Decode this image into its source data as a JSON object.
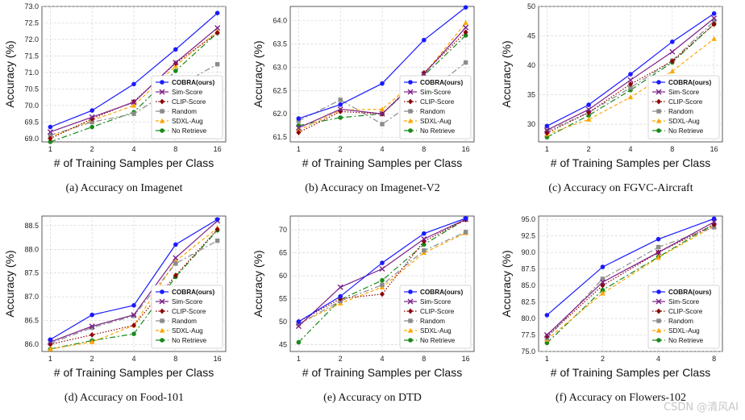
{
  "watermark": "CSDN @清风AI",
  "legend_labels": [
    "COBRA(ours)",
    "Sim-Score",
    "CLIP-Score",
    "Random",
    "SDXL-Aug",
    "No Retrieve"
  ],
  "series_colors": {
    "COBRA(ours)": "#1a1aff",
    "Sim-Score": "#7b1f87",
    "CLIP-Score": "#8b0000",
    "Random": "#8c8c8c",
    "SDXL-Aug": "#ffa500",
    "No Retrieve": "#1a8a1a"
  },
  "series_markers": {
    "COBRA(ours)": "circle",
    "Sim-Score": "x",
    "CLIP-Score": "diamond",
    "Random": "square",
    "SDXL-Aug": "triangle",
    "No Retrieve": "circle"
  },
  "grid": true,
  "legend_placement": "lower-right",
  "chart_data": [
    {
      "type": "line",
      "caption": "(a) Accuracy on Imagenet",
      "xlabel": "# of Training Samples per Class",
      "ylabel": "Accuracy (%)",
      "x": [
        1,
        2,
        4,
        8,
        16
      ],
      "xticks": [
        "1",
        "2",
        "4",
        "8",
        "16"
      ],
      "yticks": [
        "69.0",
        "69.5",
        "70.0",
        "70.5",
        "71.0",
        "71.5",
        "72.0",
        "72.5",
        "73.0"
      ],
      "ylim": [
        68.9,
        73.0
      ],
      "series": [
        {
          "name": "COBRA(ours)",
          "values": [
            69.35,
            69.85,
            70.65,
            71.7,
            72.8
          ]
        },
        {
          "name": "Sim-Score",
          "values": [
            69.2,
            69.65,
            70.1,
            71.3,
            72.35
          ]
        },
        {
          "name": "CLIP-Score",
          "values": [
            69.0,
            69.6,
            70.12,
            71.28,
            72.2
          ]
        },
        {
          "name": "Random",
          "values": [
            69.1,
            69.5,
            69.75,
            70.55,
            71.25
          ]
        },
        {
          "name": "SDXL-Aug",
          "values": [
            69.05,
            69.55,
            70.0,
            71.2,
            72.25
          ]
        },
        {
          "name": "No Retrieve",
          "values": [
            68.9,
            69.35,
            69.8,
            71.05,
            72.2
          ]
        }
      ]
    },
    {
      "type": "line",
      "caption": "(b) Accuracy on Imagenet-V2",
      "xlabel": "# of Training Samples per Class",
      "ylabel": "Accuracy (%)",
      "x": [
        1,
        2,
        4,
        8,
        16
      ],
      "xticks": [
        "1",
        "2",
        "4",
        "8",
        "16"
      ],
      "yticks": [
        "61.5",
        "62.0",
        "62.5",
        "63.0",
        "63.5",
        "64.0"
      ],
      "ylim": [
        61.4,
        64.3
      ],
      "series": [
        {
          "name": "COBRA(ours)",
          "values": [
            61.9,
            62.2,
            62.65,
            63.58,
            64.28
          ]
        },
        {
          "name": "Sim-Score",
          "values": [
            61.7,
            62.1,
            62.0,
            62.85,
            63.85
          ]
        },
        {
          "name": "CLIP-Score",
          "values": [
            61.6,
            62.05,
            62.0,
            62.88,
            63.75
          ]
        },
        {
          "name": "Random",
          "values": [
            61.85,
            62.3,
            61.78,
            62.4,
            63.1
          ]
        },
        {
          "name": "SDXL-Aug",
          "values": [
            61.65,
            62.08,
            62.1,
            62.85,
            63.95
          ]
        },
        {
          "name": "No Retrieve",
          "values": [
            61.75,
            61.92,
            62.0,
            62.82,
            63.68
          ]
        }
      ]
    },
    {
      "type": "line",
      "caption": "(c) Accuracy on FGVC-Aircraft",
      "xlabel": "# of Training Samples per Class",
      "ylabel": "Accuracy (%)",
      "x": [
        1,
        2,
        4,
        8,
        16
      ],
      "xticks": [
        "1",
        "2",
        "4",
        "8",
        "16"
      ],
      "yticks": [
        "30",
        "35",
        "40",
        "45",
        "50"
      ],
      "ylim": [
        27,
        50
      ],
      "series": [
        {
          "name": "COBRA(ours)",
          "values": [
            29.7,
            33.3,
            38.5,
            44.0,
            48.8
          ]
        },
        {
          "name": "Sim-Score",
          "values": [
            29.0,
            32.5,
            37.5,
            42.3,
            48.0
          ]
        },
        {
          "name": "CLIP-Score",
          "values": [
            28.5,
            32.0,
            36.8,
            40.7,
            47.0
          ]
        },
        {
          "name": "Random",
          "values": [
            28.8,
            32.0,
            36.2,
            40.8,
            47.5
          ]
        },
        {
          "name": "SDXL-Aug",
          "values": [
            28.3,
            30.8,
            34.6,
            39.0,
            44.5
          ]
        },
        {
          "name": "No Retrieve",
          "values": [
            27.8,
            31.5,
            35.8,
            40.5,
            47.0
          ]
        }
      ]
    },
    {
      "type": "line",
      "caption": "(d) Accuracy on Food-101",
      "xlabel": "# of Training Samples per Class",
      "ylabel": "Accuracy (%)",
      "x": [
        1,
        2,
        4,
        8,
        16
      ],
      "xticks": [
        "1",
        "2",
        "4",
        "8",
        "16"
      ],
      "yticks": [
        "86.0",
        "86.5",
        "87.0",
        "87.5",
        "88.0",
        "88.5"
      ],
      "ylim": [
        85.85,
        88.7
      ],
      "series": [
        {
          "name": "COBRA(ours)",
          "values": [
            86.1,
            86.62,
            86.82,
            88.1,
            88.63
          ]
        },
        {
          "name": "Sim-Score",
          "values": [
            86.05,
            86.38,
            86.62,
            87.82,
            88.6
          ]
        },
        {
          "name": "CLIP-Score",
          "values": [
            86.0,
            86.2,
            86.4,
            87.45,
            88.42
          ]
        },
        {
          "name": "Random",
          "values": [
            86.02,
            86.35,
            86.6,
            87.7,
            88.18
          ]
        },
        {
          "name": "SDXL-Aug",
          "values": [
            85.9,
            86.05,
            86.4,
            87.75,
            88.45
          ]
        },
        {
          "name": "No Retrieve",
          "values": [
            85.9,
            86.08,
            86.22,
            87.42,
            88.4
          ]
        }
      ]
    },
    {
      "type": "line",
      "caption": "(e) Accuracy on DTD",
      "xlabel": "# of Training Samples per Class",
      "ylabel": "Accuracy (%)",
      "x": [
        1,
        2,
        4,
        8,
        16
      ],
      "xticks": [
        "1",
        "2",
        "4",
        "8",
        "16"
      ],
      "yticks": [
        "45",
        "50",
        "55",
        "60",
        "65",
        "70"
      ],
      "ylim": [
        43.5,
        73
      ],
      "series": [
        {
          "name": "COBRA(ours)",
          "values": [
            50.0,
            55.5,
            62.8,
            69.2,
            72.5
          ]
        },
        {
          "name": "Sim-Score",
          "values": [
            49.0,
            57.5,
            61.5,
            68.0,
            72.3
          ]
        },
        {
          "name": "CLIP-Score",
          "values": [
            50.0,
            55.0,
            56.0,
            67.5,
            72.2
          ]
        },
        {
          "name": "Random",
          "values": [
            49.5,
            54.5,
            58.0,
            65.5,
            69.5
          ]
        },
        {
          "name": "SDXL-Aug",
          "values": [
            49.5,
            54.0,
            57.5,
            65.0,
            69.3
          ]
        },
        {
          "name": "No Retrieve",
          "values": [
            45.5,
            54.8,
            59.0,
            66.8,
            72.3
          ]
        }
      ]
    },
    {
      "type": "line",
      "caption": "(f) Accuracy on Flowers-102",
      "xlabel": "# of Training Samples per Class",
      "ylabel": "Accuracy (%)",
      "x": [
        1,
        2,
        4,
        8
      ],
      "xticks": [
        "1",
        "2",
        "4",
        "8"
      ],
      "yticks": [
        "75.0",
        "77.5",
        "80.0",
        "82.5",
        "85.0",
        "87.5",
        "90.0",
        "92.5",
        "95.0"
      ],
      "ylim": [
        75.0,
        95.5
      ],
      "series": [
        {
          "name": "COBRA(ours)",
          "values": [
            80.5,
            87.8,
            92.0,
            95.1
          ]
        },
        {
          "name": "Sim-Score",
          "values": [
            77.5,
            85.5,
            90.0,
            94.6
          ]
        },
        {
          "name": "CLIP-Score",
          "values": [
            77.3,
            85.0,
            90.0,
            94.2
          ]
        },
        {
          "name": "Random",
          "values": [
            77.0,
            86.0,
            90.8,
            93.8
          ]
        },
        {
          "name": "SDXL-Aug",
          "values": [
            76.8,
            83.8,
            89.2,
            94.0
          ]
        },
        {
          "name": "No Retrieve",
          "values": [
            76.3,
            84.3,
            89.3,
            94.3
          ]
        }
      ]
    }
  ]
}
